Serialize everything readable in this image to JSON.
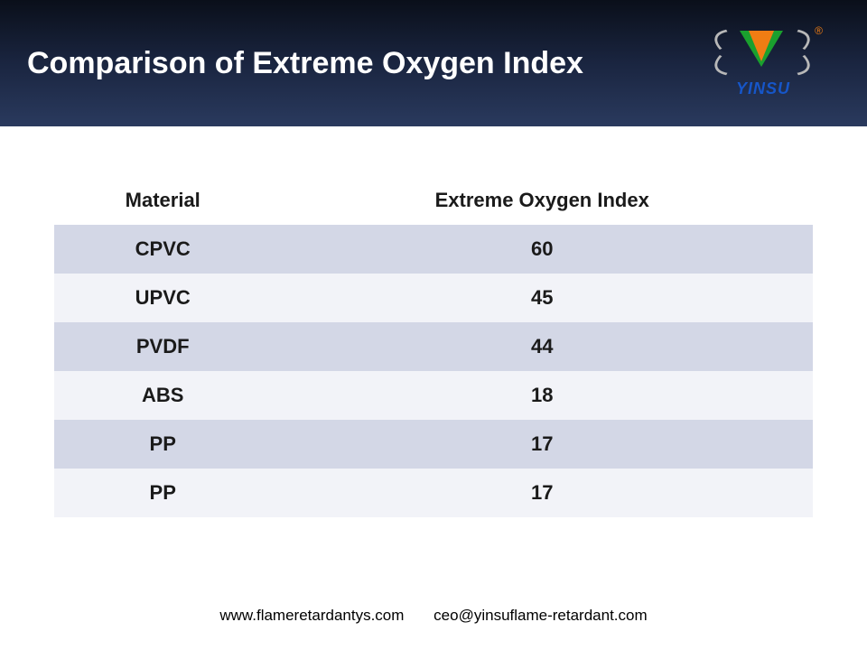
{
  "header": {
    "title": "Comparison of Extreme Oxygen Index",
    "logo_text": "YINSU",
    "reg_mark": "®"
  },
  "watermark": "YINSU",
  "table": {
    "columns": [
      "Material",
      "Extreme Oxygen Index"
    ],
    "rows": [
      {
        "material": "CPVC",
        "value": "60"
      },
      {
        "material": "UPVC",
        "value": "45"
      },
      {
        "material": "PVDF",
        "value": "44"
      },
      {
        "material": "ABS",
        "value": "18"
      },
      {
        "material": "PP",
        "value": "17"
      },
      {
        "material": "PP",
        "value": "17"
      }
    ],
    "header_bg": "#ffffff",
    "row_odd_bg": "#d3d7e6",
    "row_even_bg": "#f2f3f8",
    "text_color": "#1a1a1a",
    "font_size_header": 22,
    "font_size_cell": 22,
    "col_widths": [
      "50%",
      "50%"
    ]
  },
  "footer": {
    "website": "www.flameretardantys.com",
    "email": "ceo@yinsuflame-retardant.com"
  },
  "colors": {
    "header_gradient_top": "#0a0f1a",
    "header_gradient_mid": "#1a2540",
    "header_gradient_bot": "#2a3a5e",
    "logo_green": "#1aa02e",
    "logo_orange": "#f07d13",
    "logo_blue": "#1656c9",
    "logo_grey": "#b8b8b8",
    "watermark": "rgba(235,235,238,0.5)"
  }
}
